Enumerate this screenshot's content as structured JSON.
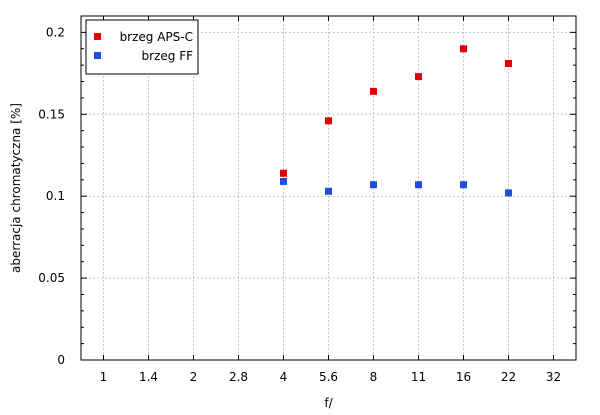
{
  "chart_data": {
    "type": "scatter",
    "xlabel": "f/",
    "ylabel": "aberracja chromatyczna [%]",
    "categories": [
      "1",
      "1.4",
      "2",
      "2.8",
      "4",
      "5.6",
      "8",
      "11",
      "16",
      "22",
      "32"
    ],
    "ylim": [
      0,
      0.21
    ],
    "yticks": [
      "0",
      "0.05",
      "0.1",
      "0.15",
      "0.2"
    ],
    "grid": true,
    "legend_position": "top-left",
    "series": [
      {
        "name": "brzeg APS-C",
        "color": "#e00000",
        "points": [
          {
            "x": "4",
            "y": 0.114
          },
          {
            "x": "5.6",
            "y": 0.146
          },
          {
            "x": "8",
            "y": 0.164
          },
          {
            "x": "11",
            "y": 0.173
          },
          {
            "x": "16",
            "y": 0.19
          },
          {
            "x": "22",
            "y": 0.181
          }
        ]
      },
      {
        "name": "brzeg FF",
        "color": "#1f4fd8",
        "points": [
          {
            "x": "4",
            "y": 0.109
          },
          {
            "x": "5.6",
            "y": 0.103
          },
          {
            "x": "8",
            "y": 0.107
          },
          {
            "x": "11",
            "y": 0.107
          },
          {
            "x": "16",
            "y": 0.107
          },
          {
            "x": "22",
            "y": 0.102
          }
        ]
      }
    ]
  }
}
